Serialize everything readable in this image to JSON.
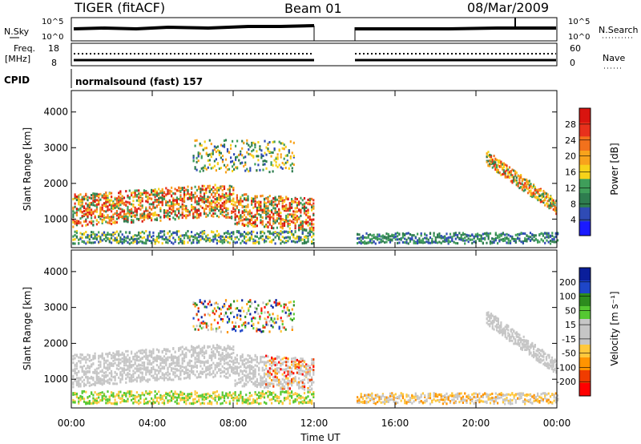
{
  "header": {
    "title": "TIGER (fitACF)",
    "beam": "Beam 01",
    "date": "08/Mar/2009"
  },
  "strips": {
    "nsky_label": "N.Sky",
    "nsky_ticks": [
      "10^5",
      "10^0"
    ],
    "nsearch_label": "N.Search",
    "freq_label": "Freq.",
    "freq_unit": "[MHz]",
    "freq_ticks": [
      "18",
      "8"
    ],
    "nave_label": "Nave",
    "nave_ticks": [
      "60",
      "0"
    ],
    "cpid_label": "CPID",
    "cpid_value": "normalsound (fast) 157"
  },
  "colors": {
    "power_scale": [
      "#1a1aff",
      "#2f4bb5",
      "#2e7d4f",
      "#3f9e5a",
      "#f7d21a",
      "#f8a31c",
      "#f2711c",
      "#e8311c",
      "#d9140f"
    ],
    "velocity_scale": [
      "#ff0000",
      "#f03c00",
      "#ff9400",
      "#ffc83c",
      "#c6c6c6",
      "#c6c6c6",
      "#55c832",
      "#2d8c1e",
      "#1e46c8",
      "#0a1e9b"
    ]
  },
  "chart_data": [
    {
      "type": "heatmap",
      "panel": "power",
      "xlabel": "",
      "ylabel": "Slant Range [km]",
      "y_ticks": [
        "1000",
        "2000",
        "3000",
        "4000"
      ],
      "x_ticks": [
        "00:00",
        "04:00",
        "08:00",
        "12:00",
        "16:00",
        "20:00",
        "00:00"
      ],
      "ylim": [
        200,
        4600
      ],
      "xlim_hours": [
        0,
        24
      ],
      "data_gap_hours": [
        12.0,
        14.0
      ],
      "colorbar": {
        "label": "Power [dB]",
        "ticks": [
          "4",
          "8",
          "12",
          "16",
          "20",
          "24",
          "28"
        ],
        "range": [
          0,
          32
        ]
      }
    },
    {
      "type": "heatmap",
      "panel": "velocity",
      "xlabel": "Time UT",
      "ylabel": "Slant Range [km]",
      "y_ticks": [
        "1000",
        "2000",
        "3000",
        "4000"
      ],
      "x_ticks": [
        "00:00",
        "04:00",
        "08:00",
        "12:00",
        "16:00",
        "20:00",
        "00:00"
      ],
      "ylim": [
        200,
        4600
      ],
      "xlim_hours": [
        0,
        24
      ],
      "data_gap_hours": [
        12.0,
        14.0
      ],
      "colorbar": {
        "label": "Velocity [m s⁻¹]",
        "ticks": [
          "200",
          "100",
          "50",
          "15",
          "-15",
          "-50",
          "-100",
          "-200"
        ],
        "range": [
          -250,
          250
        ]
      }
    }
  ]
}
